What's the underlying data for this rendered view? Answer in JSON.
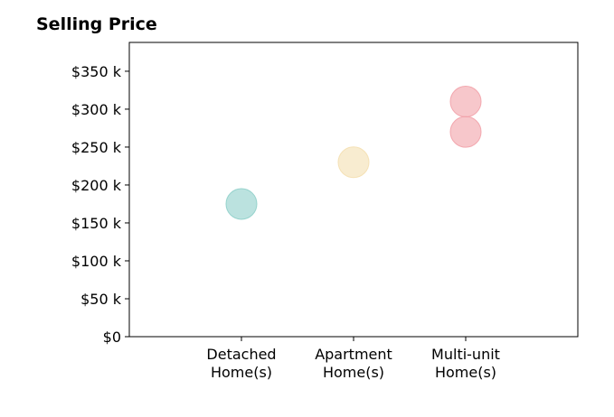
{
  "chart_data": {
    "type": "scatter",
    "title": "Selling Price",
    "categories": [
      [
        "Detached",
        "Home(s)"
      ],
      [
        "Apartment",
        "Home(s)"
      ],
      [
        "Multi-unit",
        "Home(s)"
      ]
    ],
    "y_ticks": [
      {
        "value": 0,
        "label": "$0"
      },
      {
        "value": 50,
        "label": "$50 k"
      },
      {
        "value": 100,
        "label": "$100 k"
      },
      {
        "value": 150,
        "label": "$150 k"
      },
      {
        "value": 200,
        "label": "$200 k"
      },
      {
        "value": 250,
        "label": "$250 k"
      },
      {
        "value": 300,
        "label": "$300 k"
      },
      {
        "value": 350,
        "label": "$350 k"
      }
    ],
    "ylim": [
      0,
      388
    ],
    "xlim": [
      0,
      4
    ],
    "grid": false,
    "points": [
      {
        "category": 0,
        "value": 175,
        "color": "#8ecfc9"
      },
      {
        "category": 1,
        "value": 230,
        "color": "#f4dfb0"
      },
      {
        "category": 2,
        "value": 270,
        "color": "#f2a1a8"
      },
      {
        "category": 2,
        "value": 310,
        "color": "#f2a1a8"
      }
    ]
  }
}
